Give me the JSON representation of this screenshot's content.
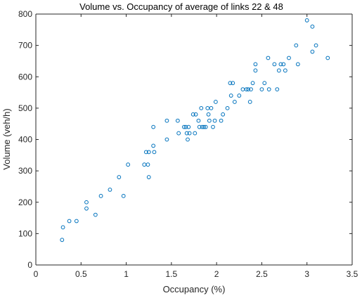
{
  "chart_data": {
    "type": "scatter",
    "title": "Volume vs. Occupancy of average of links 22 & 48",
    "xlabel": "Occupancy (%)",
    "ylabel": "Volume (veh/h)",
    "xlim": [
      0,
      3.5
    ],
    "ylim": [
      0,
      800
    ],
    "xticks": [
      "0",
      "0.5",
      "1",
      "1.5",
      "2",
      "2.5",
      "3",
      "3.5"
    ],
    "yticks": [
      "0",
      "100",
      "200",
      "300",
      "400",
      "500",
      "600",
      "700",
      "800"
    ],
    "grid": false,
    "marker": "circle-open",
    "colors": {
      "marker": "#0072BD",
      "axis": "#262626",
      "background": "#ffffff"
    },
    "series": [
      {
        "points": [
          [
            0.29,
            80
          ],
          [
            0.3,
            120
          ],
          [
            0.37,
            140
          ],
          [
            0.45,
            140
          ],
          [
            0.56,
            180
          ],
          [
            0.56,
            200
          ],
          [
            0.66,
            160
          ],
          [
            0.72,
            220
          ],
          [
            0.82,
            240
          ],
          [
            0.92,
            280
          ],
          [
            0.97,
            220
          ],
          [
            1.02,
            320
          ],
          [
            1.2,
            320
          ],
          [
            1.22,
            360
          ],
          [
            1.24,
            320
          ],
          [
            1.25,
            360
          ],
          [
            1.25,
            280
          ],
          [
            1.3,
            380
          ],
          [
            1.3,
            440
          ],
          [
            1.31,
            360
          ],
          [
            1.45,
            460
          ],
          [
            1.45,
            400
          ],
          [
            1.57,
            460
          ],
          [
            1.58,
            420
          ],
          [
            1.64,
            440
          ],
          [
            1.66,
            440
          ],
          [
            1.67,
            420
          ],
          [
            1.68,
            400
          ],
          [
            1.7,
            420
          ],
          [
            1.69,
            440
          ],
          [
            1.74,
            480
          ],
          [
            1.76,
            420
          ],
          [
            1.77,
            480
          ],
          [
            1.8,
            460
          ],
          [
            1.81,
            440
          ],
          [
            1.83,
            500
          ],
          [
            1.84,
            440
          ],
          [
            1.86,
            440
          ],
          [
            1.88,
            440
          ],
          [
            1.9,
            500
          ],
          [
            1.91,
            480
          ],
          [
            1.92,
            460
          ],
          [
            1.94,
            500
          ],
          [
            1.96,
            440
          ],
          [
            1.98,
            460
          ],
          [
            1.99,
            520
          ],
          [
            2.05,
            460
          ],
          [
            2.07,
            480
          ],
          [
            2.12,
            500
          ],
          [
            2.15,
            580
          ],
          [
            2.16,
            540
          ],
          [
            2.18,
            580
          ],
          [
            2.2,
            520
          ],
          [
            2.25,
            540
          ],
          [
            2.29,
            560
          ],
          [
            2.33,
            560
          ],
          [
            2.35,
            560
          ],
          [
            2.37,
            520
          ],
          [
            2.38,
            560
          ],
          [
            2.4,
            580
          ],
          [
            2.43,
            620
          ],
          [
            2.43,
            640
          ],
          [
            2.5,
            560
          ],
          [
            2.53,
            580
          ],
          [
            2.57,
            660
          ],
          [
            2.58,
            560
          ],
          [
            2.64,
            640
          ],
          [
            2.67,
            560
          ],
          [
            2.69,
            620
          ],
          [
            2.71,
            640
          ],
          [
            2.74,
            640
          ],
          [
            2.76,
            620
          ],
          [
            2.8,
            660
          ],
          [
            2.88,
            700
          ],
          [
            2.9,
            640
          ],
          [
            3.0,
            780
          ],
          [
            3.06,
            760
          ],
          [
            3.06,
            680
          ],
          [
            3.1,
            700
          ],
          [
            3.23,
            660
          ]
        ]
      }
    ]
  }
}
